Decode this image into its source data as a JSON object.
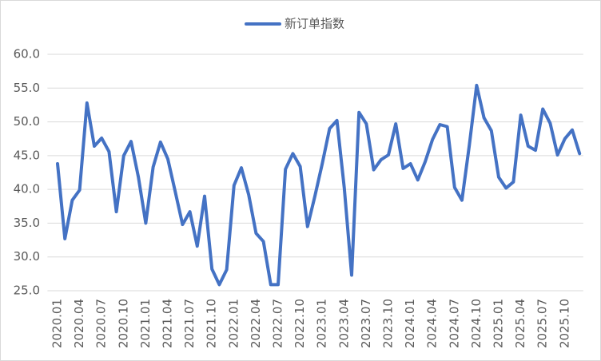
{
  "chart_data": {
    "type": "line",
    "categories": [
      "2020.01",
      null,
      null,
      "2020.04",
      null,
      null,
      "2020.07",
      null,
      null,
      "2020.10",
      null,
      null,
      "2021.01",
      null,
      null,
      "2021.04",
      null,
      null,
      "2021.07",
      null,
      null,
      "2021.10",
      null,
      null,
      "2022.01",
      null,
      null,
      "2022.04",
      null,
      null,
      "2022.07",
      null,
      null,
      "2022.10",
      null,
      null,
      "2023.01",
      null,
      null,
      "2023.04",
      null,
      null,
      "2023.07",
      null,
      null,
      "2023.10",
      null,
      null,
      "2024.01",
      null,
      null,
      "2024.04",
      null,
      null,
      "2024.07",
      null,
      null,
      "2024.10",
      null,
      null,
      "2025.01",
      null,
      null,
      "2025.04",
      null,
      null,
      "2025.07",
      null,
      null,
      "2025.10",
      null,
      null
    ],
    "series": [
      {
        "name": "新订单指数",
        "color": "#4472c4",
        "values": [
          43.8,
          32.7,
          38.4,
          39.9,
          52.8,
          46.4,
          47.6,
          45.6,
          36.7,
          45.0,
          47.1,
          41.8,
          35.0,
          43.3,
          47.0,
          44.5,
          39.7,
          34.8,
          36.7,
          31.6,
          39.0,
          28.2,
          25.9,
          28.1,
          40.6,
          43.2,
          39.2,
          33.5,
          32.3,
          25.9,
          25.9,
          43.0,
          45.3,
          43.4,
          34.5,
          39.0,
          43.8,
          49.0,
          50.2,
          40.2,
          27.3,
          51.4,
          49.7,
          42.9,
          44.4,
          45.1,
          49.7,
          43.1,
          43.8,
          41.4,
          44.1,
          47.4,
          49.6,
          49.3,
          40.3,
          38.4,
          46.5,
          55.4,
          50.6,
          48.7,
          41.8,
          40.2,
          41.1,
          51.0,
          46.4,
          45.8,
          51.9,
          49.8,
          45.1,
          47.5,
          48.8,
          45.3
        ]
      }
    ],
    "ylim": [
      25,
      60
    ],
    "yticks": [
      {
        "value": 25,
        "label": "25.0"
      },
      {
        "value": 30,
        "label": "30.0"
      },
      {
        "value": 35,
        "label": "35.0"
      },
      {
        "value": 40,
        "label": "40.0"
      },
      {
        "value": 45,
        "label": "45.0"
      },
      {
        "value": 50,
        "label": "50.0"
      },
      {
        "value": 55,
        "label": "55.0"
      },
      {
        "value": 60,
        "label": "60.0"
      }
    ],
    "grid": true,
    "legend": "top"
  }
}
